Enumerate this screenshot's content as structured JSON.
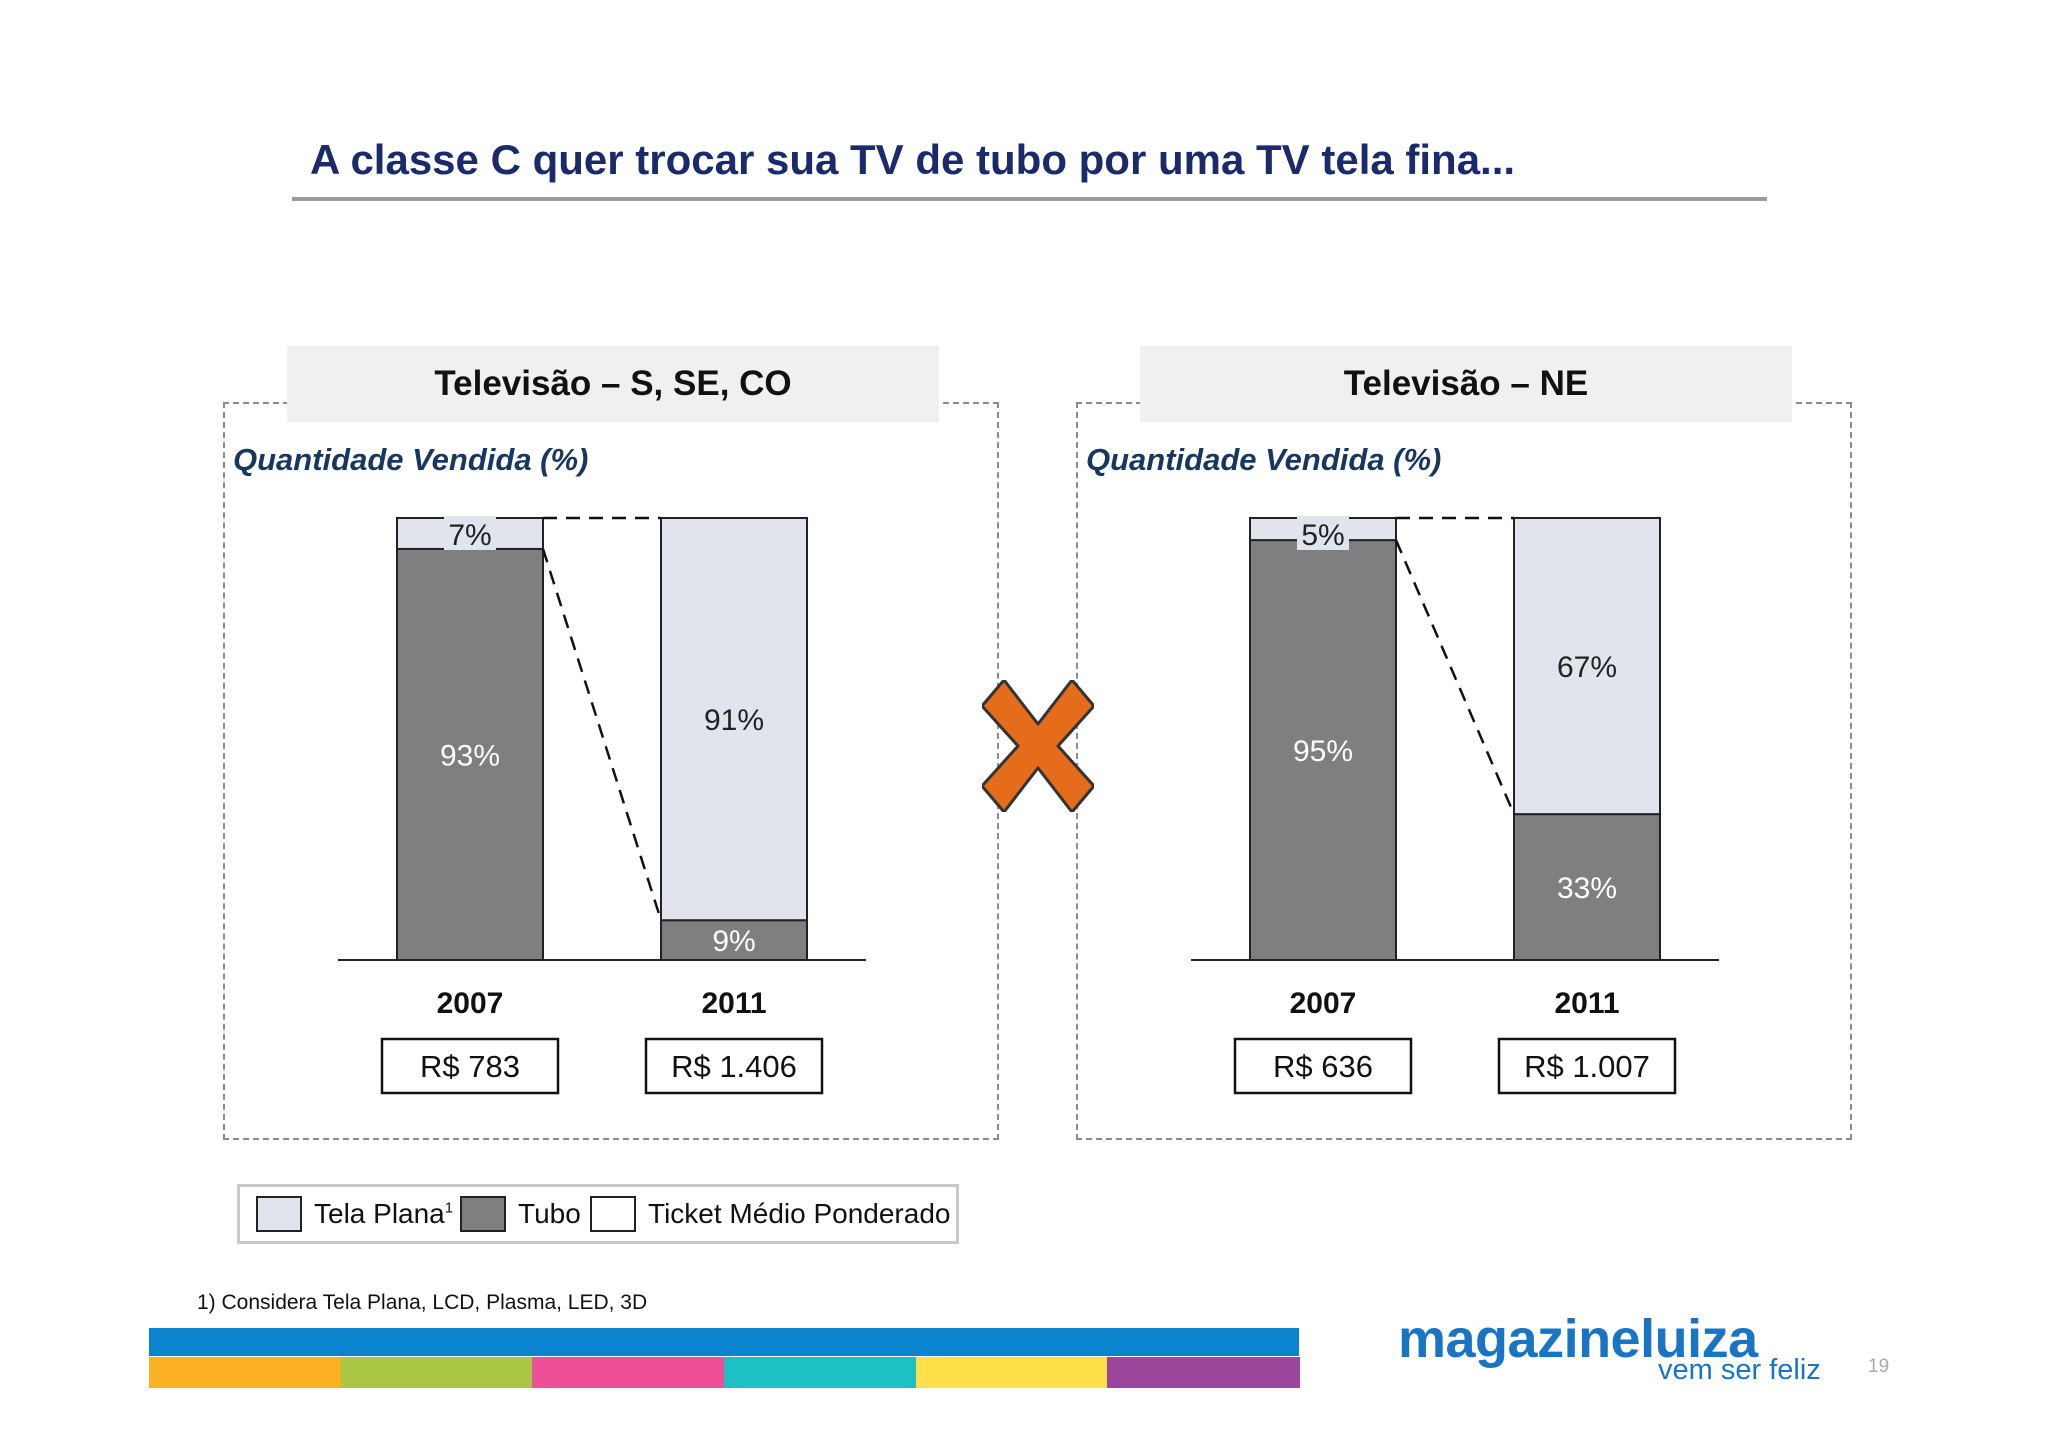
{
  "title": "A classe C quer trocar sua TV de tubo por uma TV tela fina...",
  "colors": {
    "tela_plana": "#e1e4ec",
    "tubo": "#7f7e81",
    "title": "#1b2a6b",
    "subtitle": "#17375e",
    "x_mark": "#e46c1a",
    "brand": "#1a74c4"
  },
  "chart_data": [
    {
      "type": "bar",
      "stacked": true,
      "title": "Televisão – S, SE, CO",
      "subtitle": "Quantidade Vendida (%)",
      "categories": [
        "2007",
        "2011"
      ],
      "series": [
        {
          "name": "Tubo",
          "values": [
            93,
            9
          ],
          "labels": [
            "93%",
            "9%"
          ]
        },
        {
          "name": "Tela Plana",
          "values": [
            7,
            91
          ],
          "labels": [
            "7%",
            "91%"
          ]
        }
      ],
      "ticket_medio": [
        "R$ 783",
        "R$ 1.406"
      ],
      "ylim": [
        0,
        100
      ]
    },
    {
      "type": "bar",
      "stacked": true,
      "title": "Televisão – NE",
      "subtitle": "Quantidade Vendida (%)",
      "categories": [
        "2007",
        "2011"
      ],
      "series": [
        {
          "name": "Tubo",
          "values": [
            95,
            33
          ],
          "labels": [
            "95%",
            "33%"
          ]
        },
        {
          "name": "Tela Plana",
          "values": [
            5,
            67
          ],
          "labels": [
            "5%",
            "67%"
          ]
        }
      ],
      "ticket_medio": [
        "R$ 636",
        "R$ 1.007"
      ],
      "ylim": [
        0,
        100
      ]
    }
  ],
  "legend": {
    "tela_plana": "Tela Plana",
    "tela_plana_sup": "1",
    "tubo": "Tubo",
    "ticket": "Ticket Médio Ponderado"
  },
  "footnote": "1) Considera Tela Plana, LCD, Plasma, LED, 3D",
  "brand": {
    "name": "magazineluiza",
    "tagline": "vem ser feliz",
    "stripe_colors": [
      "#fbb122",
      "#a9c744",
      "#ee4f98",
      "#1dc1c3",
      "#fee04a",
      "#9b469b"
    ]
  },
  "page_number": "19"
}
